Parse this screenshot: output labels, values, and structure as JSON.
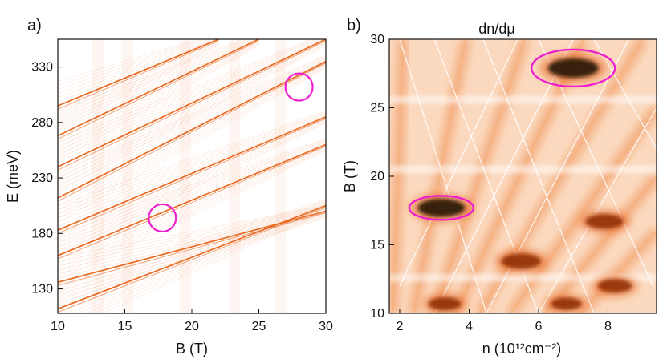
{
  "chart_data": [
    {
      "panel_label": "a)",
      "type": "line",
      "title": "",
      "xlabel": "B (T)",
      "ylabel": "E (meV)",
      "xlim": [
        10,
        30
      ],
      "ylim": [
        108,
        355
      ],
      "xticks": [
        "10",
        "15",
        "20",
        "25",
        "30"
      ],
      "yticks": [
        "130",
        "180",
        "230",
        "280",
        "330"
      ],
      "series_color": "#e8661c",
      "bands": [
        {
          "x": [
            10,
            30
          ],
          "y": [
            112,
            205
          ]
        },
        {
          "x": [
            10,
            30
          ],
          "y": [
            136,
            200
          ]
        },
        {
          "x": [
            10,
            30
          ],
          "y": [
            160,
            260
          ]
        },
        {
          "x": [
            10,
            30
          ],
          "y": [
            183,
            285
          ]
        },
        {
          "x": [
            10,
            30
          ],
          "y": [
            212,
            335
          ]
        },
        {
          "x": [
            10,
            30
          ],
          "y": [
            240,
            355
          ]
        },
        {
          "x": [
            10,
            25
          ],
          "y": [
            268,
            355
          ]
        },
        {
          "x": [
            10,
            22
          ],
          "y": [
            295,
            355
          ]
        }
      ],
      "circles": [
        {
          "x": 17.8,
          "y": 194
        },
        {
          "x": 28.0,
          "y": 312
        }
      ]
    },
    {
      "panel_label": "b)",
      "type": "heatmap",
      "title": "dn/dμ",
      "xlabel": "n (10¹²cm⁻²)",
      "ylabel": "B (T)",
      "xlim": [
        1.7,
        9.4
      ],
      "ylim": [
        10,
        30
      ],
      "xticks": [
        "2",
        "4",
        "6",
        "8"
      ],
      "yticks": [
        "10",
        "15",
        "20",
        "25",
        "30"
      ],
      "colors": [
        "#ffffff",
        "#f7b27a",
        "#e8661c",
        "#8a2a06",
        "#1a0a04"
      ],
      "hot_spots": [
        {
          "n": 7.0,
          "B": 27.9,
          "value": 1.0
        },
        {
          "n": 3.2,
          "B": 17.7,
          "value": 0.9
        },
        {
          "n": 5.5,
          "B": 13.8,
          "value": 0.7
        },
        {
          "n": 7.9,
          "B": 16.7,
          "value": 0.65
        },
        {
          "n": 8.2,
          "B": 12.0,
          "value": 0.55
        },
        {
          "n": 3.3,
          "B": 10.7,
          "value": 0.5
        },
        {
          "n": 6.8,
          "B": 10.7,
          "value": 0.45
        }
      ],
      "circles": [
        {
          "n": 7.0,
          "B": 27.9
        },
        {
          "n": 3.2,
          "B": 17.7
        }
      ],
      "circle_color": "#ee1fcf"
    }
  ]
}
